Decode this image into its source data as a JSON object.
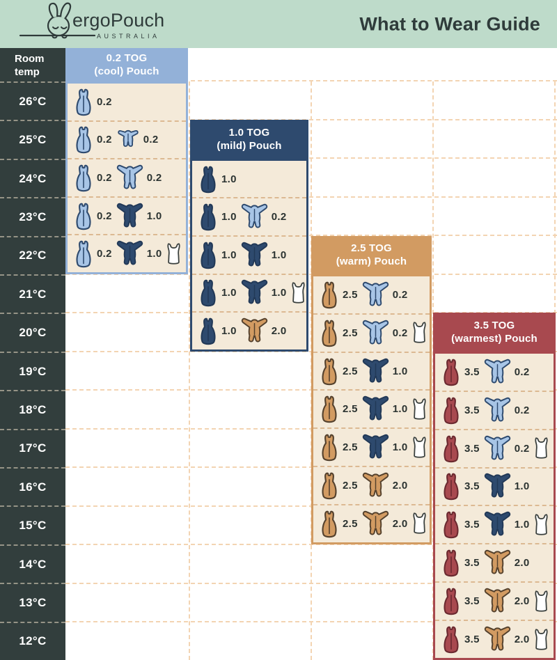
{
  "header": {
    "brand": "ergoPouch",
    "brand_sub": "AUSTRALIA",
    "title": "What to Wear Guide"
  },
  "temp_column": {
    "header_line1": "Room",
    "header_line2": "temp",
    "temps": [
      "26°C",
      "25°C",
      "24°C",
      "23°C",
      "22°C",
      "21°C",
      "20°C",
      "19°C",
      "18°C",
      "17°C",
      "16°C",
      "15°C",
      "14°C",
      "13°C",
      "12°C"
    ]
  },
  "colors": {
    "banner_mint": "#bedbca",
    "temp_column_bg": "#323e3d",
    "panel_body_beige": "#f4ead9",
    "dash_on_white": "#f3d4b2",
    "dash_on_beige": "#dcb992",
    "text_dark": "#2f3b3a"
  },
  "icon_colors": {
    "lightblue": {
      "fill": "#a8c5e6",
      "outline": "#2e4a6e"
    },
    "navy": {
      "fill": "#2e4a6e",
      "outline": "#223957"
    },
    "tan": {
      "fill": "#d29b62",
      "outline": "#54412d"
    },
    "red": {
      "fill": "#a8494f",
      "outline": "#6b2a30"
    },
    "white": {
      "fill": "#ffffff",
      "outline": "#3a403e"
    }
  },
  "panels": [
    {
      "name": "0.2-tog-cool",
      "title_line1": "0.2 TOG",
      "title_line2": "(cool) Pouch",
      "header_bg": "#93b1d8",
      "header_text": "#ffffff",
      "border": "#93b1d8",
      "body_bg": "#f4ead9",
      "rows": [
        {
          "temp": "26°C",
          "items": [
            {
              "icon": "pouch",
              "color": "lightblue",
              "tog": "0.2"
            }
          ]
        },
        {
          "temp": "25°C",
          "items": [
            {
              "icon": "pouch",
              "color": "lightblue",
              "tog": "0.2"
            },
            {
              "icon": "romper",
              "color": "lightblue",
              "tog": "0.2"
            }
          ]
        },
        {
          "temp": "24°C",
          "items": [
            {
              "icon": "pouch",
              "color": "lightblue",
              "tog": "0.2"
            },
            {
              "icon": "onesie",
              "color": "lightblue",
              "tog": "0.2"
            }
          ]
        },
        {
          "temp": "23°C",
          "items": [
            {
              "icon": "pouch",
              "color": "lightblue",
              "tog": "0.2"
            },
            {
              "icon": "onesie",
              "color": "navy",
              "tog": "1.0"
            }
          ]
        },
        {
          "temp": "22°C",
          "items": [
            {
              "icon": "pouch",
              "color": "lightblue",
              "tog": "0.2"
            },
            {
              "icon": "onesie",
              "color": "navy",
              "tog": "1.0"
            },
            {
              "icon": "singlet",
              "color": "white"
            }
          ]
        }
      ]
    },
    {
      "name": "1.0-tog-mild",
      "title_line1": "1.0 TOG",
      "title_line2": "(mild) Pouch",
      "header_bg": "#2e4a6e",
      "header_text": "#ffffff",
      "border": "#2e4a6e",
      "body_bg": "#f4ead9",
      "rows": [
        {
          "temp": "24°C",
          "items": [
            {
              "icon": "pouch",
              "color": "navy",
              "tog": "1.0"
            }
          ]
        },
        {
          "temp": "23°C",
          "items": [
            {
              "icon": "pouch",
              "color": "navy",
              "tog": "1.0"
            },
            {
              "icon": "onesie",
              "color": "lightblue",
              "tog": "0.2"
            }
          ]
        },
        {
          "temp": "22°C",
          "items": [
            {
              "icon": "pouch",
              "color": "navy",
              "tog": "1.0"
            },
            {
              "icon": "onesie",
              "color": "navy",
              "tog": "1.0"
            }
          ]
        },
        {
          "temp": "21°C",
          "items": [
            {
              "icon": "pouch",
              "color": "navy",
              "tog": "1.0"
            },
            {
              "icon": "onesie",
              "color": "navy",
              "tog": "1.0"
            },
            {
              "icon": "singlet",
              "color": "white"
            }
          ]
        },
        {
          "temp": "20°C",
          "items": [
            {
              "icon": "pouch",
              "color": "navy",
              "tog": "1.0"
            },
            {
              "icon": "onesie",
              "color": "tan",
              "tog": "2.0"
            }
          ]
        }
      ]
    },
    {
      "name": "2.5-tog-warm",
      "title_line1": "2.5 TOG",
      "title_line2": "(warm) Pouch",
      "header_bg": "#d29b62",
      "header_text": "#ffffff",
      "border": "#d29b62",
      "body_bg": "#f4ead9",
      "rows": [
        {
          "temp": "21°C",
          "items": [
            {
              "icon": "pouch",
              "color": "tan",
              "tog": "2.5"
            },
            {
              "icon": "onesie",
              "color": "lightblue",
              "tog": "0.2"
            }
          ]
        },
        {
          "temp": "20°C",
          "items": [
            {
              "icon": "pouch",
              "color": "tan",
              "tog": "2.5"
            },
            {
              "icon": "onesie",
              "color": "lightblue",
              "tog": "0.2"
            },
            {
              "icon": "singlet",
              "color": "white"
            }
          ]
        },
        {
          "temp": "19°C",
          "items": [
            {
              "icon": "pouch",
              "color": "tan",
              "tog": "2.5"
            },
            {
              "icon": "onesie",
              "color": "navy",
              "tog": "1.0"
            }
          ]
        },
        {
          "temp": "18°C",
          "items": [
            {
              "icon": "pouch",
              "color": "tan",
              "tog": "2.5"
            },
            {
              "icon": "onesie",
              "color": "navy",
              "tog": "1.0"
            },
            {
              "icon": "singlet",
              "color": "white"
            }
          ]
        },
        {
          "temp": "17°C",
          "items": [
            {
              "icon": "pouch",
              "color": "tan",
              "tog": "2.5"
            },
            {
              "icon": "onesie",
              "color": "navy",
              "tog": "1.0"
            },
            {
              "icon": "singlet",
              "color": "white"
            }
          ]
        },
        {
          "temp": "16°C",
          "items": [
            {
              "icon": "pouch",
              "color": "tan",
              "tog": "2.5"
            },
            {
              "icon": "onesie",
              "color": "tan",
              "tog": "2.0"
            }
          ]
        },
        {
          "temp": "15°C",
          "items": [
            {
              "icon": "pouch",
              "color": "tan",
              "tog": "2.5"
            },
            {
              "icon": "onesie",
              "color": "tan",
              "tog": "2.0"
            },
            {
              "icon": "singlet",
              "color": "white"
            }
          ]
        }
      ]
    },
    {
      "name": "3.5-tog-warmest",
      "title_line1": "3.5 TOG",
      "title_line2": "(warmest) Pouch",
      "header_bg": "#a8494f",
      "header_text": "#ffffff",
      "border": "#a8494f",
      "body_bg": "#f4ead9",
      "rows": [
        {
          "temp": "19°C",
          "items": [
            {
              "icon": "pouch",
              "color": "red",
              "tog": "3.5"
            },
            {
              "icon": "onesie",
              "color": "lightblue",
              "tog": "0.2"
            }
          ]
        },
        {
          "temp": "18°C",
          "items": [
            {
              "icon": "pouch",
              "color": "red",
              "tog": "3.5"
            },
            {
              "icon": "onesie",
              "color": "lightblue",
              "tog": "0.2"
            }
          ]
        },
        {
          "temp": "17°C",
          "items": [
            {
              "icon": "pouch",
              "color": "red",
              "tog": "3.5"
            },
            {
              "icon": "onesie",
              "color": "lightblue",
              "tog": "0.2"
            },
            {
              "icon": "singlet",
              "color": "white"
            }
          ]
        },
        {
          "temp": "16°C",
          "items": [
            {
              "icon": "pouch",
              "color": "red",
              "tog": "3.5"
            },
            {
              "icon": "onesie",
              "color": "navy",
              "tog": "1.0"
            }
          ]
        },
        {
          "temp": "15°C",
          "items": [
            {
              "icon": "pouch",
              "color": "red",
              "tog": "3.5"
            },
            {
              "icon": "onesie",
              "color": "navy",
              "tog": "1.0"
            },
            {
              "icon": "singlet",
              "color": "white"
            }
          ]
        },
        {
          "temp": "14°C",
          "items": [
            {
              "icon": "pouch",
              "color": "red",
              "tog": "3.5"
            },
            {
              "icon": "onesie",
              "color": "tan",
              "tog": "2.0"
            }
          ]
        },
        {
          "temp": "13°C",
          "items": [
            {
              "icon": "pouch",
              "color": "red",
              "tog": "3.5"
            },
            {
              "icon": "onesie",
              "color": "tan",
              "tog": "2.0"
            },
            {
              "icon": "singlet",
              "color": "white"
            }
          ]
        },
        {
          "temp": "12°C",
          "items": [
            {
              "icon": "pouch",
              "color": "red",
              "tog": "3.5"
            },
            {
              "icon": "onesie",
              "color": "tan",
              "tog": "2.0"
            },
            {
              "icon": "singlet",
              "color": "white"
            }
          ]
        }
      ]
    }
  ]
}
